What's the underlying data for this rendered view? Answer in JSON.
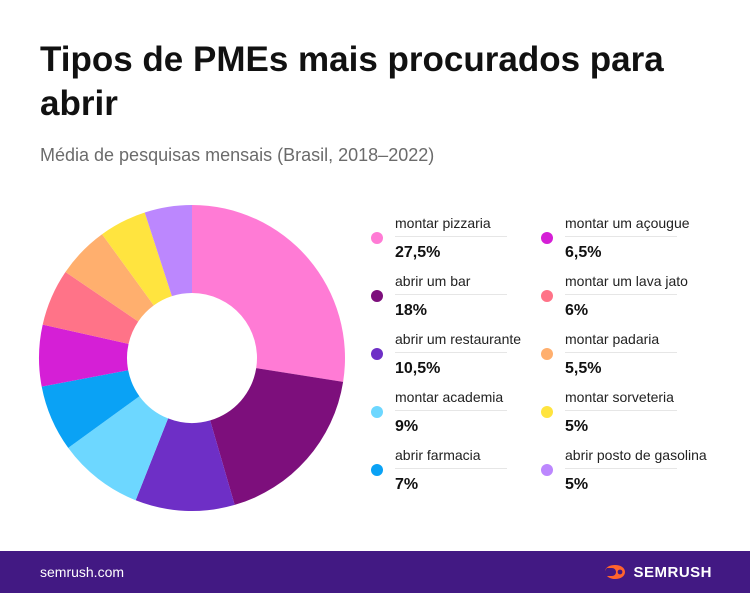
{
  "title": "Tipos de PMEs mais procurados para abrir",
  "subtitle": "Média de pesquisas mensais (Brasil, 2018–2022)",
  "chart_data": {
    "type": "pie",
    "hole": true,
    "series": [
      {
        "name": "montar pizzaria",
        "value": 27.5,
        "label": "27,5%",
        "color": "#FF7BD5"
      },
      {
        "name": "abrir um bar",
        "value": 18,
        "label": "18%",
        "color": "#7D0F7C"
      },
      {
        "name": "abrir um restaurante",
        "value": 10.5,
        "label": "10,5%",
        "color": "#6E2FC6"
      },
      {
        "name": "montar academia",
        "value": 9,
        "label": "9%",
        "color": "#6DD7FF"
      },
      {
        "name": "abrir farmacia",
        "value": 7,
        "label": "7%",
        "color": "#0AA2F5"
      },
      {
        "name": "montar um açougue",
        "value": 6.5,
        "label": "6,5%",
        "color": "#D51FD6"
      },
      {
        "name": "montar um lava jato",
        "value": 6,
        "label": "6%",
        "color": "#FF7388"
      },
      {
        "name": "montar padaria",
        "value": 5.5,
        "label": "5,5%",
        "color": "#FFAF6E"
      },
      {
        "name": "montar sorveteria",
        "value": 5,
        "label": "5%",
        "color": "#FFE43F"
      },
      {
        "name": "abrir posto de gasolina",
        "value": 5,
        "label": "5%",
        "color": "#BC87FE"
      }
    ],
    "legend_placement": "right"
  },
  "footer": {
    "url": "semrush.com",
    "brand": "SEMRUSH",
    "brand_color": "#FF642D",
    "background": "#421983"
  }
}
